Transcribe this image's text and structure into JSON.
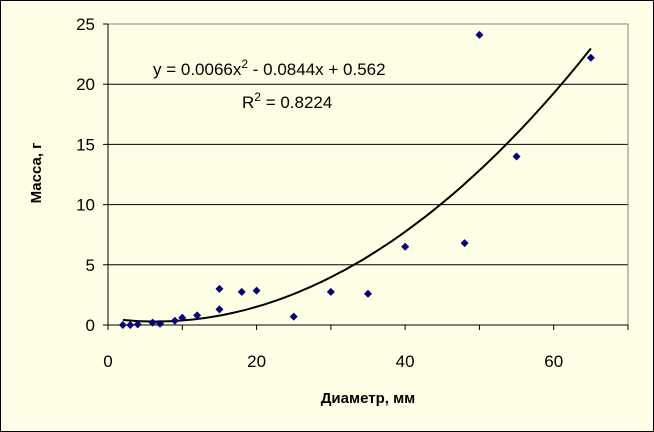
{
  "chart_data": {
    "type": "scatter",
    "xlabel": "Диаметр, мм",
    "ylabel": "Масса, г",
    "xlim": [
      0,
      70
    ],
    "ylim": [
      0,
      25
    ],
    "x_ticks": [
      "0",
      "20",
      "40",
      "60"
    ],
    "y_ticks": [
      "0",
      "5",
      "10",
      "15",
      "20",
      "25"
    ],
    "grid": "horizontal",
    "series": [
      {
        "marker": "diamond",
        "color": "#000080",
        "points": [
          [
            2,
            0.0
          ],
          [
            3,
            0.0
          ],
          [
            4,
            0.05
          ],
          [
            6,
            0.2
          ],
          [
            7,
            0.1
          ],
          [
            9,
            0.35
          ],
          [
            10,
            0.6
          ],
          [
            12,
            0.8
          ],
          [
            15,
            1.3
          ],
          [
            15,
            3.0
          ],
          [
            18,
            2.75
          ],
          [
            20,
            2.85
          ],
          [
            25,
            0.7
          ],
          [
            30,
            2.75
          ],
          [
            35,
            2.6
          ],
          [
            40,
            6.5
          ],
          [
            48,
            6.8
          ],
          [
            50,
            24.1
          ],
          [
            55,
            14.0
          ],
          [
            65,
            22.2
          ]
        ]
      }
    ],
    "trendline": {
      "type": "polynomial",
      "coefficients": [
        0.0066,
        -0.0844,
        0.562
      ],
      "x_range": [
        2,
        65
      ],
      "color": "#000000",
      "equation": {
        "lhs": "y = 0.0066x",
        "exp": "2",
        "rhs": " - 0.0844x + 0.562"
      },
      "r2": {
        "lhs": "R",
        "exp": "2",
        "rhs": " = 0.8224"
      }
    }
  }
}
